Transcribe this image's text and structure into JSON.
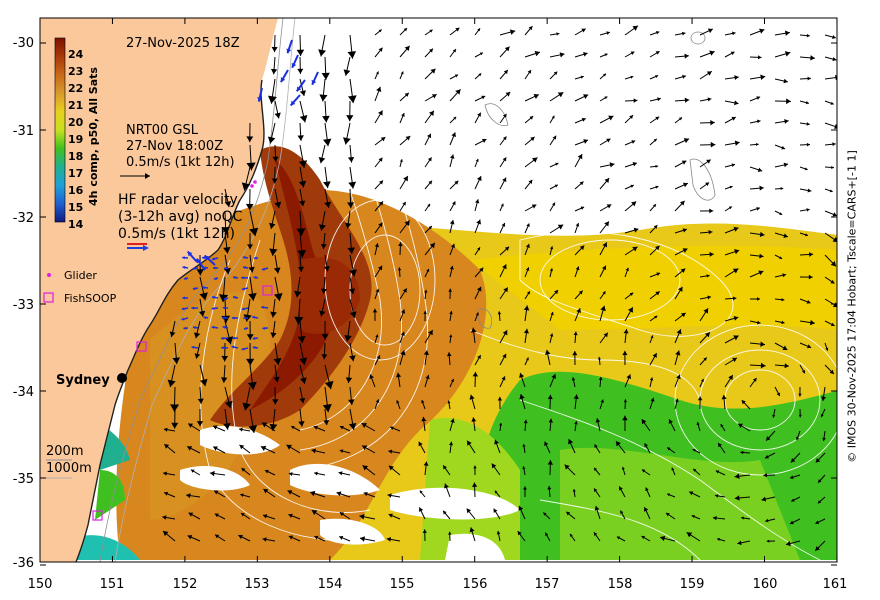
{
  "title_date": "27-Nov-2025 18Z",
  "colorbar": {
    "label": "4h comp, p50, All Sats",
    "ticks": [
      "24",
      "23",
      "22",
      "21",
      "20",
      "19",
      "18",
      "17",
      "16",
      "15",
      "14"
    ],
    "colors": [
      "#7a1200",
      "#a83a08",
      "#c86a1a",
      "#d89a2a",
      "#e8d020",
      "#c8e020",
      "#40c020",
      "#20b090",
      "#20a0d8",
      "#2060d0",
      "#101a80"
    ]
  },
  "gsl_note": {
    "line1": "NRT00 GSL",
    "line2": "27-Nov 18:00Z",
    "line3": "0.5m/s (1kt 12h)"
  },
  "hf_note": {
    "line1": "HF radar velocity",
    "line2": "(3-12h avg) noQC",
    "line3": "0.5m/s (1kt 12h)"
  },
  "legend": {
    "glider": "Glider",
    "fishsoop": "FishSOOP"
  },
  "city": "Sydney",
  "depth": {
    "d200": "200m",
    "d1000": "1000m"
  },
  "x_ticks": [
    "150",
    "151",
    "152",
    "153",
    "154",
    "155",
    "156",
    "157",
    "158",
    "159",
    "160",
    "161"
  ],
  "y_ticks": [
    "-30",
    "-31",
    "-32",
    "-33",
    "-34",
    "-35",
    "-36"
  ],
  "credit": "© IMOS 30-Nov-2025 17:04 Hobart; Tscale=CARS+[-1 1]",
  "colors": {
    "land": "#fbc89b",
    "warm_core": "#8b1a00",
    "green": "#3cc020"
  }
}
